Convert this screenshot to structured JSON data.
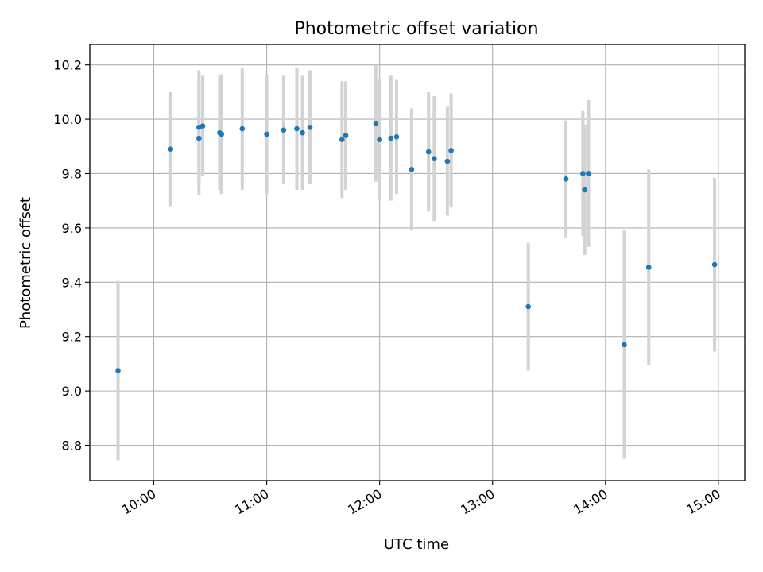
{
  "chart_data": {
    "type": "scatter",
    "title": "Photometric offset variation",
    "xlabel": "UTC time",
    "ylabel": "Photometric offset",
    "x_is_time": true,
    "x_unit": "UTC time (HH:MM)",
    "xlim": [
      "09:26",
      "15:14"
    ],
    "ylim": [
      8.67,
      10.275
    ],
    "x_ticks": [
      "10:00",
      "11:00",
      "12:00",
      "13:00",
      "14:00",
      "15:00"
    ],
    "y_ticks": [
      8.8,
      9.0,
      9.2,
      9.4,
      9.6,
      9.8,
      10.0,
      10.2
    ],
    "y_tick_labels": [
      "8.8",
      "9.0",
      "9.2",
      "9.4",
      "9.6",
      "9.8",
      "10.0",
      "10.2"
    ],
    "grid": true,
    "legend": "none",
    "colors": {
      "point": "#1f77b4",
      "errorbar": "#d3d3d3",
      "grid": "#b0b0b0"
    },
    "points": [
      {
        "x": "09:41",
        "y": 9.075,
        "err": 0.33
      },
      {
        "x": "10:09",
        "y": 9.89,
        "err": 0.21
      },
      {
        "x": "10:24",
        "y": 9.93,
        "err": 0.21
      },
      {
        "x": "10:24",
        "y": 9.97,
        "err": 0.21
      },
      {
        "x": "10:26",
        "y": 9.975,
        "err": 0.185
      },
      {
        "x": "10:35",
        "y": 9.95,
        "err": 0.21
      },
      {
        "x": "10:36",
        "y": 9.945,
        "err": 0.22
      },
      {
        "x": "10:47",
        "y": 9.965,
        "err": 0.225
      },
      {
        "x": "11:00",
        "y": 9.945,
        "err": 0.22
      },
      {
        "x": "11:09",
        "y": 9.96,
        "err": 0.2
      },
      {
        "x": "11:16",
        "y": 9.965,
        "err": 0.225
      },
      {
        "x": "11:19",
        "y": 9.95,
        "err": 0.21
      },
      {
        "x": "11:23",
        "y": 9.97,
        "err": 0.21
      },
      {
        "x": "11:40",
        "y": 9.925,
        "err": 0.215
      },
      {
        "x": "11:42",
        "y": 9.94,
        "err": 0.2
      },
      {
        "x": "11:58",
        "y": 9.985,
        "err": 0.215
      },
      {
        "x": "12:00",
        "y": 9.925,
        "err": 0.225
      },
      {
        "x": "12:06",
        "y": 9.93,
        "err": 0.23
      },
      {
        "x": "12:09",
        "y": 9.935,
        "err": 0.21
      },
      {
        "x": "12:17",
        "y": 9.815,
        "err": 0.225
      },
      {
        "x": "12:26",
        "y": 9.88,
        "err": 0.22
      },
      {
        "x": "12:29",
        "y": 9.855,
        "err": 0.23
      },
      {
        "x": "12:36",
        "y": 9.845,
        "err": 0.2
      },
      {
        "x": "12:38",
        "y": 9.885,
        "err": 0.21
      },
      {
        "x": "13:19",
        "y": 9.31,
        "err": 0.235
      },
      {
        "x": "13:39",
        "y": 9.78,
        "err": 0.215
      },
      {
        "x": "13:48",
        "y": 9.8,
        "err": 0.23
      },
      {
        "x": "13:49",
        "y": 9.74,
        "err": 0.24
      },
      {
        "x": "13:51",
        "y": 9.8,
        "err": 0.27
      },
      {
        "x": "14:10",
        "y": 9.17,
        "err": 0.42
      },
      {
        "x": "14:23",
        "y": 9.455,
        "err": 0.36
      },
      {
        "x": "14:58",
        "y": 9.465,
        "err": 0.32
      }
    ]
  }
}
